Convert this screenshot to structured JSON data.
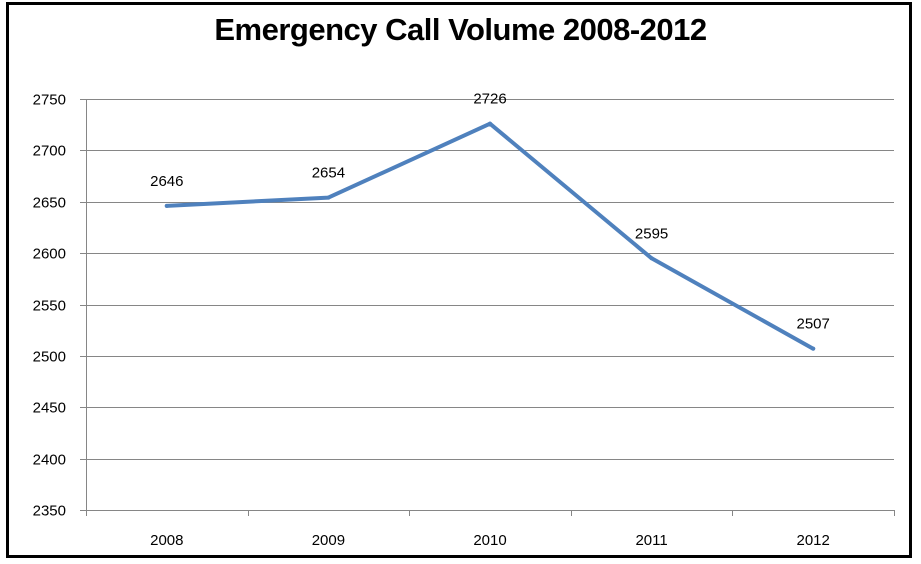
{
  "chart_data": {
    "type": "line",
    "title": "Emergency Call Volume 2008-2012",
    "xlabel": "",
    "ylabel": "",
    "categories": [
      "2008",
      "2009",
      "2010",
      "2011",
      "2012"
    ],
    "series": [
      {
        "values": [
          2646,
          2654,
          2726,
          2595,
          2507
        ],
        "color": "#4f81bd"
      }
    ],
    "data_labels": [
      "2646",
      "2654",
      "2726",
      "2595",
      "2507"
    ],
    "ylim": [
      2350,
      2750
    ],
    "yticks": [
      "2350",
      "2400",
      "2450",
      "2500",
      "2550",
      "2600",
      "2650",
      "2700",
      "2750"
    ],
    "grid": true,
    "legend": "none",
    "colors": {
      "line": "#4f81bd",
      "grid": "#868686",
      "axis": "#868686"
    }
  }
}
